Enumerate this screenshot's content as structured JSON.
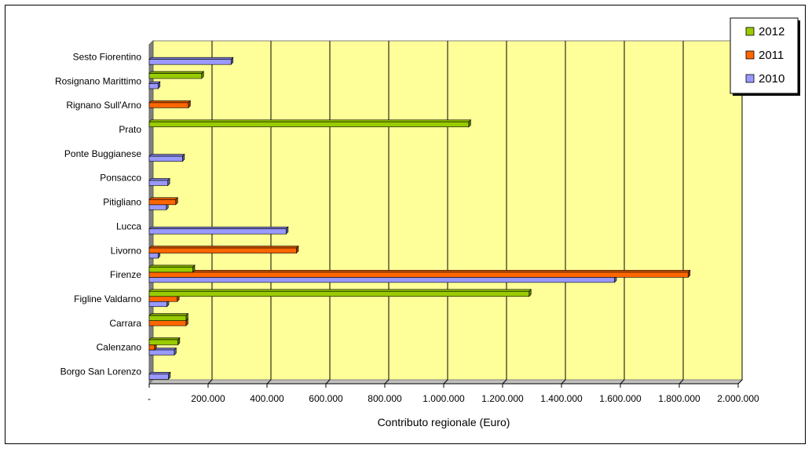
{
  "chart_data": {
    "type": "bar",
    "orientation": "horizontal",
    "title": "",
    "xlabel": "Contributo regionale (Euro)",
    "ylabel": "",
    "xlim": [
      0,
      2000000
    ],
    "x_ticks": [
      0,
      200000,
      400000,
      600000,
      800000,
      1000000,
      1200000,
      1400000,
      1600000,
      1800000,
      2000000
    ],
    "x_tick_labels": [
      "-",
      "200.000",
      "400.000",
      "600.000",
      "800.000",
      "1.000.000",
      "1.200.000",
      "1.400.000",
      "1.600.000",
      "1.800.000",
      "2.000.000"
    ],
    "grid": true,
    "legend_position": "top-right",
    "plot_background": "#ffff99",
    "categories": [
      "Borgo San Lorenzo",
      "Calenzano",
      "Carrara",
      "Figline Valdarno",
      "Firenze",
      "Livorno",
      "Lucca",
      "Pitigliano",
      "Ponsacco",
      "Ponte Buggianese",
      "Prato",
      "Rignano Sull'Arno",
      "Rosignano Marittimo",
      "Sesto Fiorentino"
    ],
    "series": [
      {
        "name": "2010",
        "color": "#9999ff",
        "values": [
          65000,
          85000,
          0,
          60000,
          1580000,
          30000,
          465000,
          58000,
          63000,
          113000,
          0,
          0,
          30000,
          278000
        ]
      },
      {
        "name": "2011",
        "color": "#ff6600",
        "values": [
          0,
          18000,
          125000,
          95000,
          1830000,
          500000,
          0,
          90000,
          0,
          0,
          0,
          133000,
          0,
          0
        ]
      },
      {
        "name": "2012",
        "color": "#99cc00",
        "values": [
          0,
          97000,
          125000,
          1290000,
          148000,
          0,
          0,
          0,
          0,
          0,
          1085000,
          0,
          178000,
          0
        ]
      }
    ],
    "legend_order": [
      "2012",
      "2011",
      "2010"
    ]
  }
}
